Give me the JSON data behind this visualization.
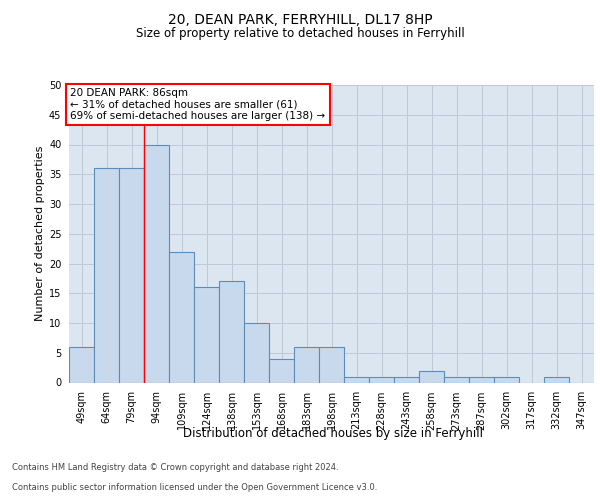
{
  "title1": "20, DEAN PARK, FERRYHILL, DL17 8HP",
  "title2": "Size of property relative to detached houses in Ferryhill",
  "xlabel": "Distribution of detached houses by size in Ferryhill",
  "ylabel": "Number of detached properties",
  "categories": [
    "49sqm",
    "64sqm",
    "79sqm",
    "94sqm",
    "109sqm",
    "124sqm",
    "138sqm",
    "153sqm",
    "168sqm",
    "183sqm",
    "198sqm",
    "213sqm",
    "228sqm",
    "243sqm",
    "258sqm",
    "273sqm",
    "287sqm",
    "302sqm",
    "317sqm",
    "332sqm",
    "347sqm"
  ],
  "values": [
    6,
    36,
    36,
    40,
    22,
    16,
    17,
    10,
    4,
    6,
    6,
    1,
    1,
    1,
    2,
    1,
    1,
    1,
    0,
    1,
    0
  ],
  "bar_color": "#c8d9ed",
  "bar_edge_color": "#5b8db8",
  "bar_edge_width": 0.8,
  "grid_color": "#c0c8d8",
  "bg_color": "#dce6f0",
  "red_line_x": 2.5,
  "annotation_title": "20 DEAN PARK: 86sqm",
  "annotation_line1": "← 31% of detached houses are smaller (61)",
  "annotation_line2": "69% of semi-detached houses are larger (138) →",
  "footer1": "Contains HM Land Registry data © Crown copyright and database right 2024.",
  "footer2": "Contains public sector information licensed under the Open Government Licence v3.0.",
  "ylim_max": 50,
  "yticks": [
    0,
    5,
    10,
    15,
    20,
    25,
    30,
    35,
    40,
    45,
    50
  ],
  "title1_fontsize": 10,
  "title2_fontsize": 8.5,
  "ylabel_fontsize": 8,
  "xlabel_fontsize": 8.5,
  "tick_fontsize": 7,
  "annotation_fontsize": 7.5,
  "footer_fontsize": 6
}
